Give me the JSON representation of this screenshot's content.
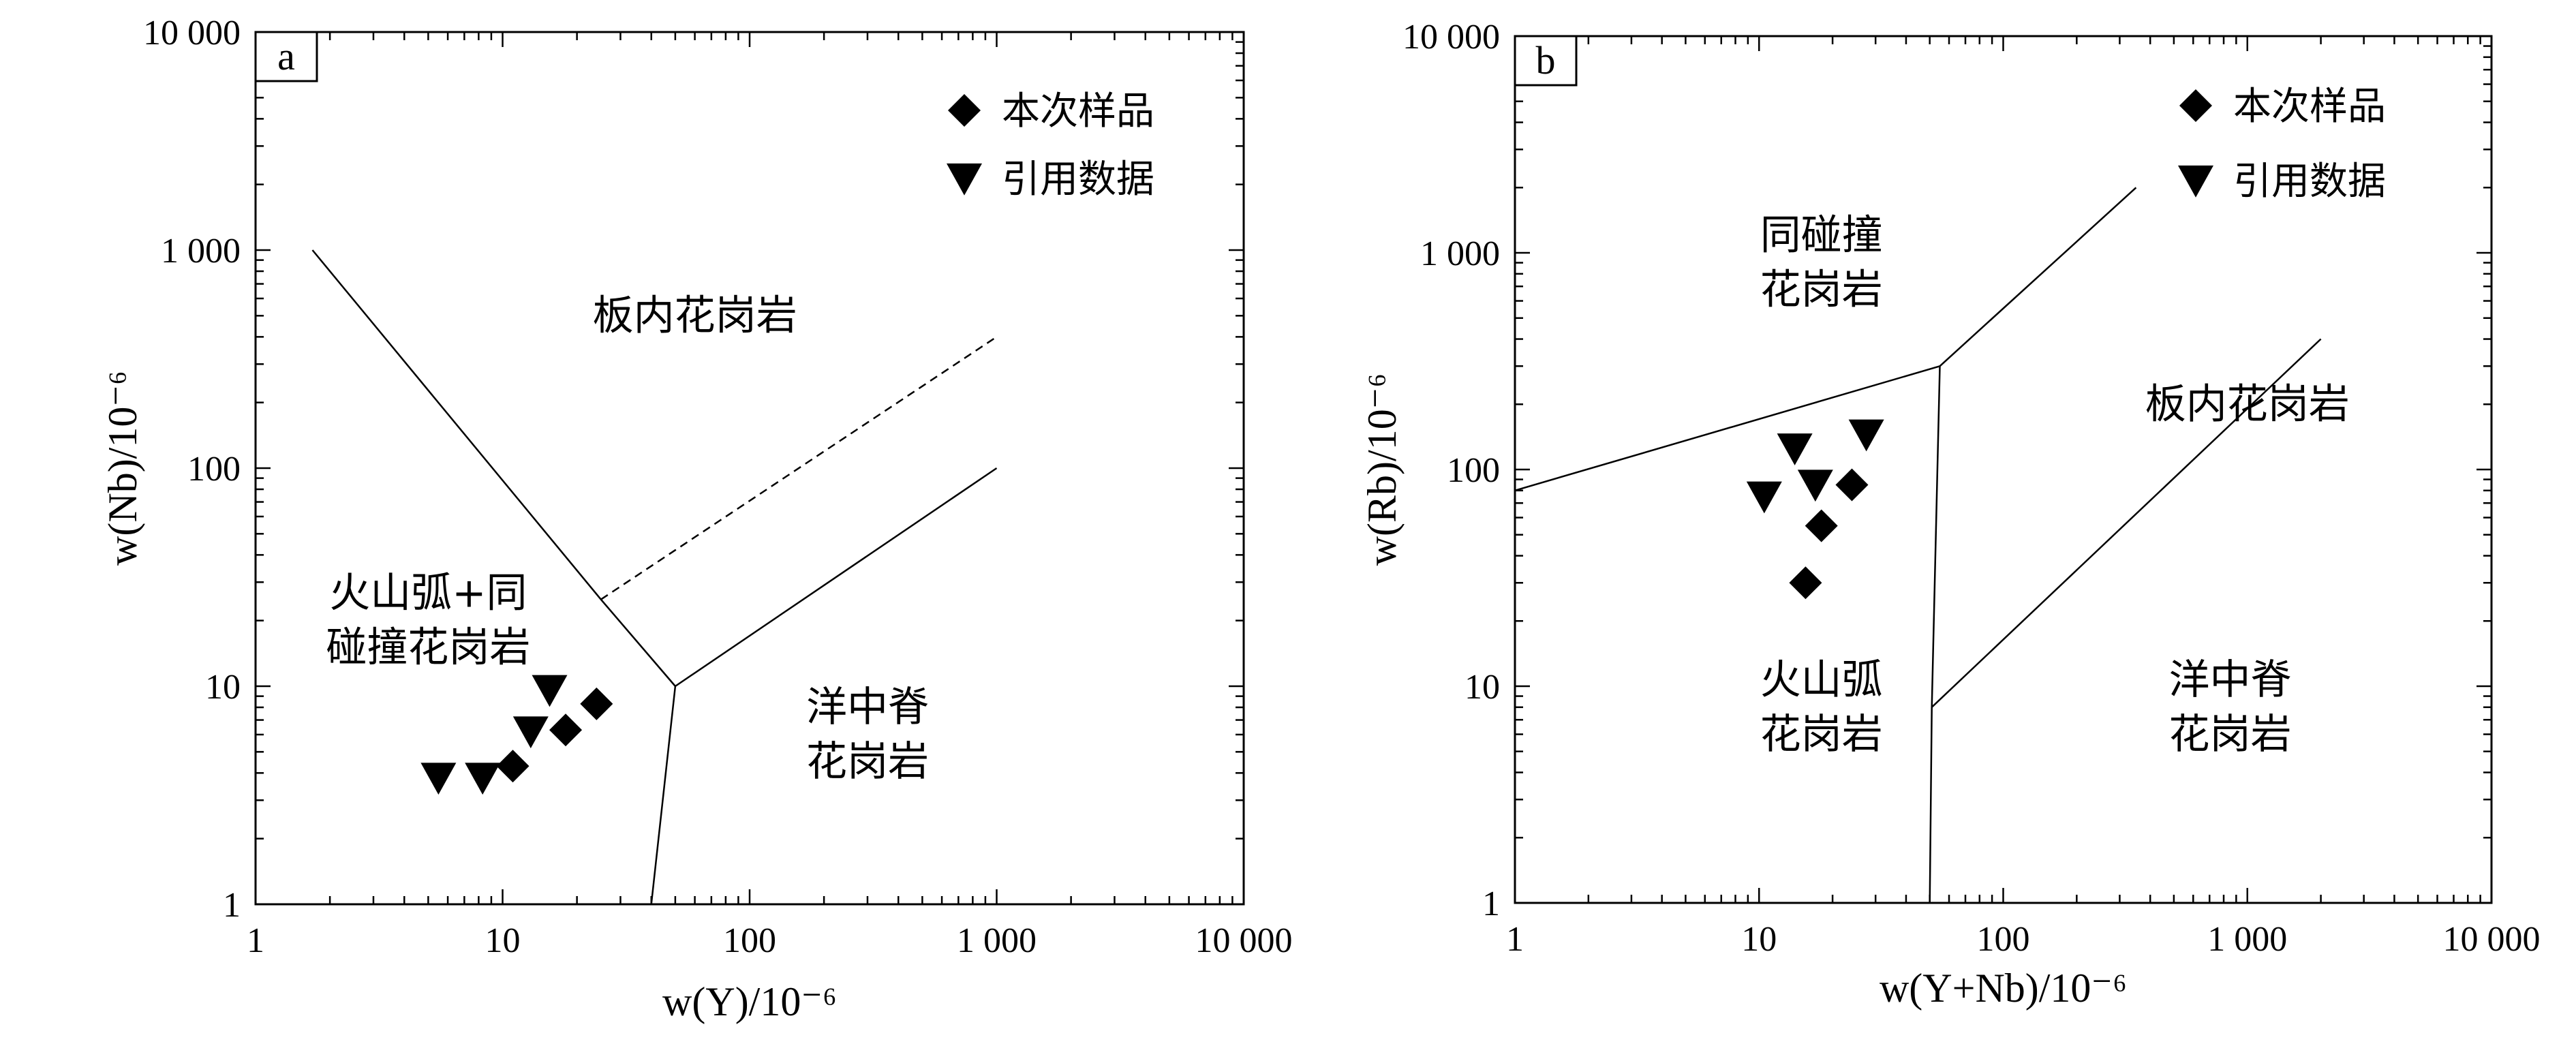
{
  "chart_data": [
    {
      "panel_label": "a",
      "type": "scatter",
      "xscale": "log",
      "yscale": "log",
      "xlim": [
        1,
        10000
      ],
      "ylim": [
        1,
        10000
      ],
      "xticks": [
        "1",
        "10",
        "100",
        "1 000",
        "10 000"
      ],
      "yticks": [
        "1",
        "10",
        "100",
        "1 000",
        "10 000"
      ],
      "xlabel": "w(Y)/10⁻⁶",
      "ylabel": "w(Nb)/10⁻⁶",
      "legend": {
        "placement": "top-right",
        "entries": [
          "本次样品",
          "引用数据"
        ]
      },
      "series": [
        {
          "name": "本次样品",
          "marker": "diamond",
          "points": [
            [
              11,
              4.3
            ],
            [
              18,
              6.3
            ],
            [
              24,
              8.3
            ]
          ]
        },
        {
          "name": "引用数据",
          "marker": "triangle-down",
          "points": [
            [
              5.5,
              3.8
            ],
            [
              8.3,
              3.8
            ],
            [
              13,
              6.2
            ],
            [
              15.5,
              9.6
            ]
          ]
        }
      ],
      "boundaries": [
        {
          "style": "solid",
          "points": [
            [
              1.7,
              1000
            ],
            [
              25,
              25
            ],
            [
              50,
              10
            ]
          ]
        },
        {
          "style": "solid",
          "points": [
            [
              50,
              10
            ],
            [
              1000,
              100
            ]
          ]
        },
        {
          "style": "solid",
          "points": [
            [
              50,
              10
            ],
            [
              40,
              1
            ]
          ]
        },
        {
          "style": "dashed",
          "points": [
            [
              25,
              25
            ],
            [
              1000,
              400
            ]
          ]
        }
      ],
      "region_labels": [
        {
          "lines": [
            "板内花岗岩"
          ],
          "at": [
            60,
            500
          ]
        },
        {
          "lines": [
            "火山弧+同",
            "碰撞花岗岩"
          ],
          "at": [
            5,
            20
          ]
        },
        {
          "lines": [
            "洋中脊",
            "花岗岩"
          ],
          "at": [
            300,
            6
          ]
        }
      ]
    },
    {
      "panel_label": "b",
      "type": "scatter",
      "xscale": "log",
      "yscale": "log",
      "xlim": [
        1,
        10000
      ],
      "ylim": [
        1,
        10000
      ],
      "xticks": [
        "1",
        "10",
        "100",
        "1 000",
        "10 000"
      ],
      "yticks": [
        "1",
        "10",
        "100",
        "1 000",
        "10 000"
      ],
      "xlabel": "w(Y+Nb)/10⁻⁶",
      "ylabel": "w(Rb)/10⁻⁶",
      "legend": {
        "placement": "top-right",
        "entries": [
          "本次样品",
          "引用数据"
        ]
      },
      "series": [
        {
          "name": "本次样品",
          "marker": "diamond",
          "points": [
            [
              15.5,
              30
            ],
            [
              18,
              55
            ],
            [
              24,
              85
            ]
          ]
        },
        {
          "name": "引用数据",
          "marker": "triangle-down",
          "points": [
            [
              10.5,
              75
            ],
            [
              14,
              125
            ],
            [
              17,
              85
            ],
            [
              27.5,
              145
            ]
          ]
        }
      ],
      "boundaries": [
        {
          "style": "solid",
          "points": [
            [
              1,
              80
            ],
            [
              55,
              300
            ]
          ]
        },
        {
          "style": "solid",
          "points": [
            [
              55,
              300
            ],
            [
              350,
              2000
            ]
          ]
        },
        {
          "style": "solid",
          "points": [
            [
              55,
              300
            ],
            [
              51,
              8
            ],
            [
              50,
              1
            ]
          ]
        },
        {
          "style": "solid",
          "points": [
            [
              51,
              8
            ],
            [
              2000,
              400
            ]
          ]
        }
      ],
      "region_labels": [
        {
          "lines": [
            "同碰撞",
            "花岗岩"
          ],
          "at": [
            18,
            900
          ]
        },
        {
          "lines": [
            "板内花岗岩"
          ],
          "at": [
            1000,
            200
          ]
        },
        {
          "lines": [
            "火山弧",
            "花岗岩"
          ],
          "at": [
            18,
            8
          ]
        },
        {
          "lines": [
            "洋中脊",
            "花岗岩"
          ],
          "at": [
            850,
            8
          ]
        }
      ]
    }
  ]
}
